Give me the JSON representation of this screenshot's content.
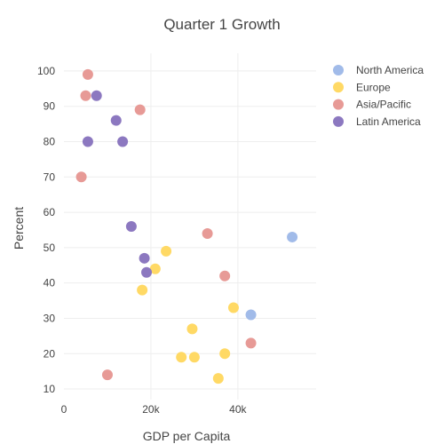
{
  "chart_data": {
    "type": "scatter",
    "title": "Quarter 1 Growth",
    "xlabel": "GDP per Capita",
    "ylabel": "Percent",
    "xlim": [
      0,
      58000
    ],
    "ylim": [
      7,
      105
    ],
    "x_ticks": [
      0,
      20000,
      40000
    ],
    "x_tick_labels": [
      "0",
      "20k",
      "40k"
    ],
    "y_ticks": [
      10,
      20,
      30,
      40,
      50,
      60,
      70,
      80,
      90,
      100
    ],
    "grid": true,
    "legend_position": "top-right",
    "series": [
      {
        "name": "North America",
        "color": "#a1bbe9",
        "points": [
          [
            52500,
            53
          ],
          [
            43000,
            31
          ]
        ]
      },
      {
        "name": "Europe",
        "color": "#ffd965",
        "points": [
          [
            23500,
            49
          ],
          [
            21000,
            44
          ],
          [
            18000,
            38
          ],
          [
            39000,
            33
          ],
          [
            29500,
            27
          ],
          [
            37000,
            20
          ],
          [
            27000,
            19
          ],
          [
            30000,
            19
          ],
          [
            35500,
            13
          ]
        ]
      },
      {
        "name": "Asia/Pacific",
        "color": "#e79a96",
        "points": [
          [
            5500,
            99
          ],
          [
            5000,
            93
          ],
          [
            17500,
            89
          ],
          [
            4000,
            70
          ],
          [
            33000,
            54
          ],
          [
            37000,
            42
          ],
          [
            43000,
            23
          ],
          [
            10000,
            14
          ]
        ]
      },
      {
        "name": "Latin America",
        "color": "#8c78c0",
        "points": [
          [
            7500,
            93
          ],
          [
            12000,
            86
          ],
          [
            5500,
            80
          ],
          [
            13500,
            80
          ],
          [
            15500,
            56
          ],
          [
            18500,
            47
          ],
          [
            19000,
            43
          ]
        ]
      }
    ]
  }
}
